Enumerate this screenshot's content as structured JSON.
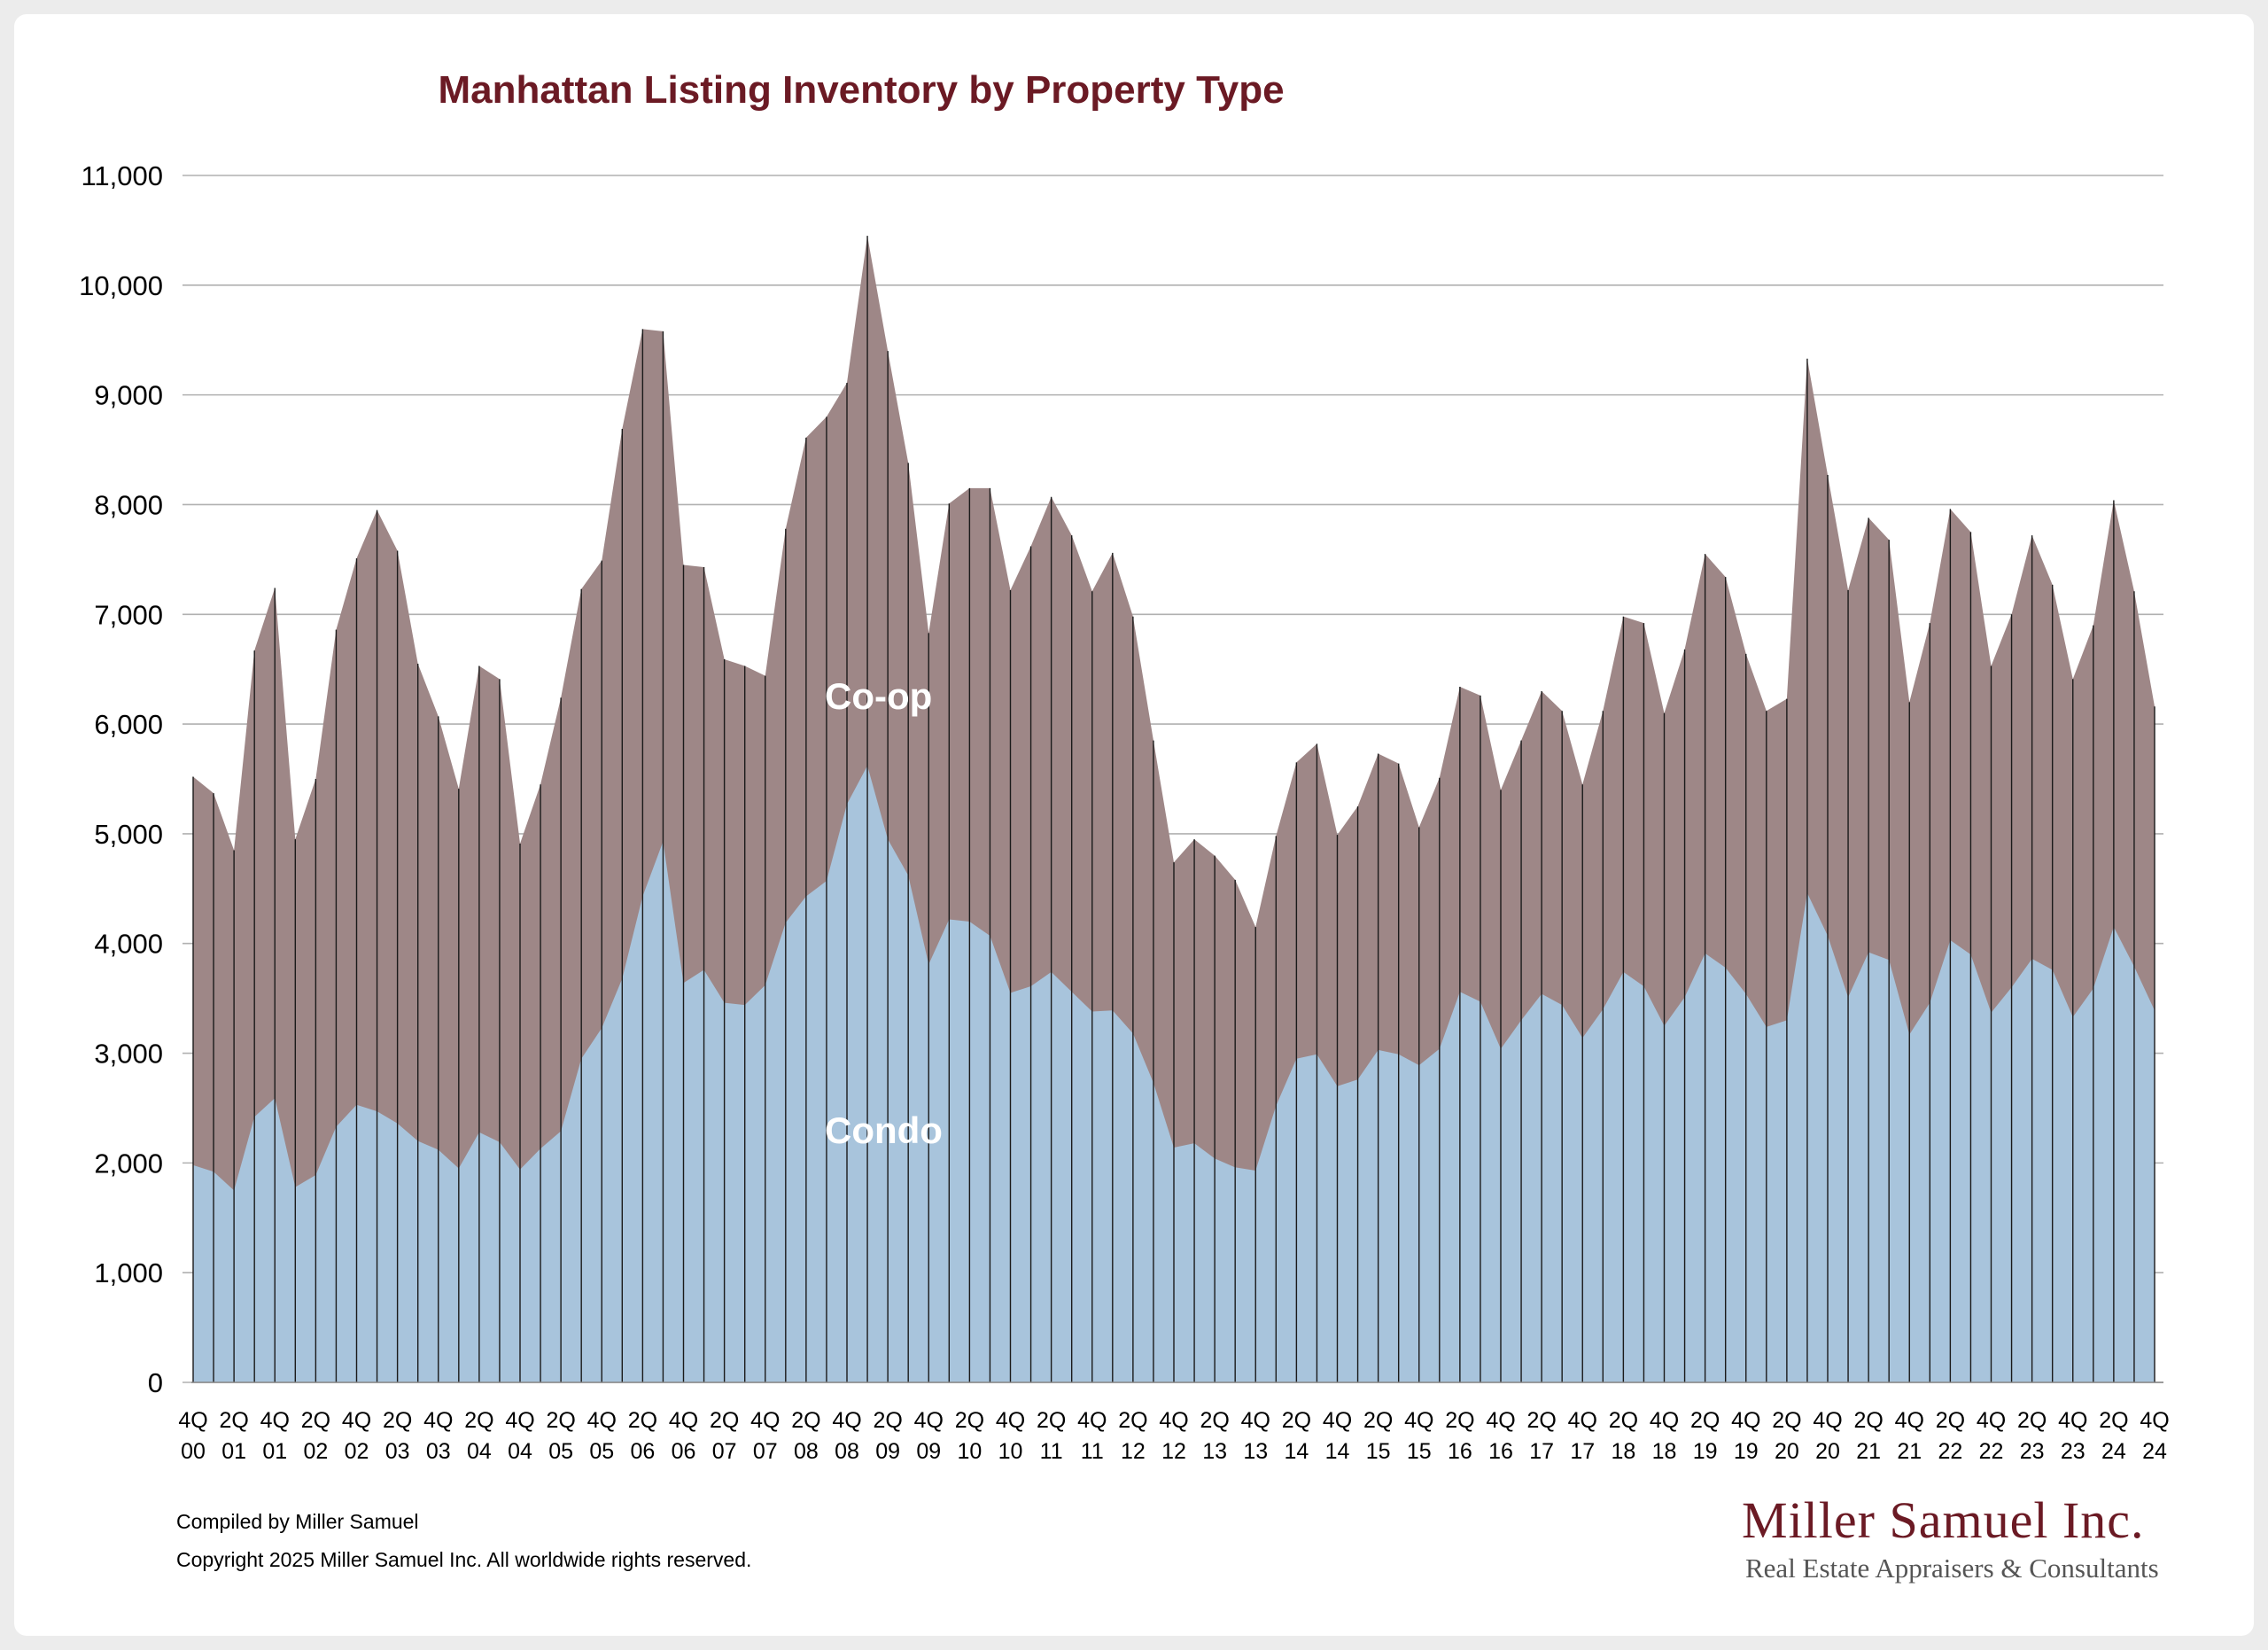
{
  "chart_data": {
    "type": "area",
    "title": "Manhattan Listing Inventory by Property Type",
    "stacked": true,
    "ylim": [
      0,
      11000
    ],
    "yticks": [
      "0",
      "1,000",
      "2,000",
      "3,000",
      "4,000",
      "5,000",
      "6,000",
      "7,000",
      "8,000",
      "9,000",
      "10,000",
      "11,000"
    ],
    "ytick_values": [
      0,
      1000,
      2000,
      3000,
      4000,
      5000,
      6000,
      7000,
      8000,
      9000,
      10000,
      11000
    ],
    "grid": true,
    "x_tick_labels": [
      [
        "4Q",
        "00"
      ],
      [
        "2Q",
        "01"
      ],
      [
        "4Q",
        "01"
      ],
      [
        "2Q",
        "02"
      ],
      [
        "4Q",
        "02"
      ],
      [
        "2Q",
        "03"
      ],
      [
        "4Q",
        "03"
      ],
      [
        "2Q",
        "04"
      ],
      [
        "4Q",
        "04"
      ],
      [
        "2Q",
        "05"
      ],
      [
        "4Q",
        "05"
      ],
      [
        "2Q",
        "06"
      ],
      [
        "4Q",
        "06"
      ],
      [
        "2Q",
        "07"
      ],
      [
        "4Q",
        "07"
      ],
      [
        "2Q",
        "08"
      ],
      [
        "4Q",
        "08"
      ],
      [
        "2Q",
        "09"
      ],
      [
        "4Q",
        "09"
      ],
      [
        "2Q",
        "10"
      ],
      [
        "4Q",
        "10"
      ],
      [
        "2Q",
        "11"
      ],
      [
        "4Q",
        "11"
      ],
      [
        "2Q",
        "12"
      ],
      [
        "4Q",
        "12"
      ],
      [
        "2Q",
        "13"
      ],
      [
        "4Q",
        "13"
      ],
      [
        "2Q",
        "14"
      ],
      [
        "4Q",
        "14"
      ],
      [
        "2Q",
        "15"
      ],
      [
        "4Q",
        "15"
      ],
      [
        "2Q",
        "16"
      ],
      [
        "4Q",
        "16"
      ],
      [
        "2Q",
        "17"
      ],
      [
        "4Q",
        "17"
      ],
      [
        "2Q",
        "18"
      ],
      [
        "4Q",
        "18"
      ],
      [
        "2Q",
        "19"
      ],
      [
        "4Q",
        "19"
      ],
      [
        "2Q",
        "20"
      ],
      [
        "4Q",
        "20"
      ],
      [
        "2Q",
        "21"
      ],
      [
        "4Q",
        "21"
      ],
      [
        "2Q",
        "22"
      ],
      [
        "4Q",
        "22"
      ],
      [
        "2Q",
        "23"
      ],
      [
        "4Q",
        "23"
      ],
      [
        "2Q",
        "24"
      ],
      [
        "4Q",
        "24"
      ]
    ],
    "series": [
      {
        "name": "Condo",
        "color": "#a8c4dc",
        "values": [
          1980,
          1920,
          1750,
          2420,
          2590,
          1780,
          1890,
          2330,
          2530,
          2470,
          2360,
          2200,
          2120,
          1950,
          2280,
          2190,
          1940,
          2130,
          2290,
          2950,
          3230,
          3680,
          4430,
          4930,
          3640,
          3760,
          3460,
          3440,
          3620,
          4190,
          4430,
          4570,
          5270,
          5620,
          4950,
          4620,
          3810,
          4220,
          4200,
          4070,
          3550,
          3610,
          3740,
          3560,
          3380,
          3390,
          3180,
          2730,
          2140,
          2180,
          2040,
          1960,
          1930,
          2520,
          2950,
          2990,
          2700,
          2760,
          3030,
          2990,
          2890,
          3040,
          3560,
          3470,
          3040,
          3300,
          3540,
          3440,
          3140,
          3400,
          3740,
          3610,
          3250,
          3510,
          3910,
          3780,
          3540,
          3240,
          3300,
          4460,
          4070,
          3510,
          3920,
          3850,
          3170,
          3460,
          4030,
          3900,
          3370,
          3600,
          3860,
          3760,
          3330,
          3590,
          4150,
          3790,
          3390
        ]
      },
      {
        "name": "Co-op",
        "color": "#9e8787",
        "values": [
          3540,
          3450,
          3100,
          4250,
          4650,
          3170,
          3610,
          4530,
          4980,
          5480,
          5220,
          4350,
          3950,
          3460,
          4250,
          4220,
          2970,
          3320,
          3950,
          4280,
          4260,
          5010,
          5170,
          4650,
          3810,
          3670,
          3130,
          3090,
          2820,
          3590,
          4180,
          4230,
          3840,
          4830,
          4450,
          3760,
          3020,
          3790,
          3950,
          4080,
          3670,
          4010,
          4330,
          4160,
          3830,
          4170,
          3800,
          3120,
          2600,
          2770,
          2760,
          2620,
          2220,
          2460,
          2700,
          2830,
          2290,
          2490,
          2700,
          2650,
          2170,
          2470,
          2780,
          2790,
          2360,
          2550,
          2760,
          2680,
          2310,
          2720,
          3240,
          3310,
          2850,
          3170,
          3640,
          3560,
          3100,
          2880,
          2930,
          4870,
          4200,
          3710,
          3960,
          3830,
          3030,
          3460,
          3930,
          3850,
          3160,
          3400,
          3860,
          3510,
          3080,
          3310,
          3890,
          3420,
          2770
        ]
      }
    ]
  },
  "labels": {
    "coop": "Co-op",
    "condo": "Condo"
  },
  "footer": {
    "compiled": "Compiled by Miller Samuel",
    "copyright": "Copyright 2025 Miller Samuel Inc.  All worldwide rights reserved."
  },
  "logo": {
    "name": "Miller Samuel Inc.",
    "tagline": "Real Estate Appraisers & Consultants"
  }
}
